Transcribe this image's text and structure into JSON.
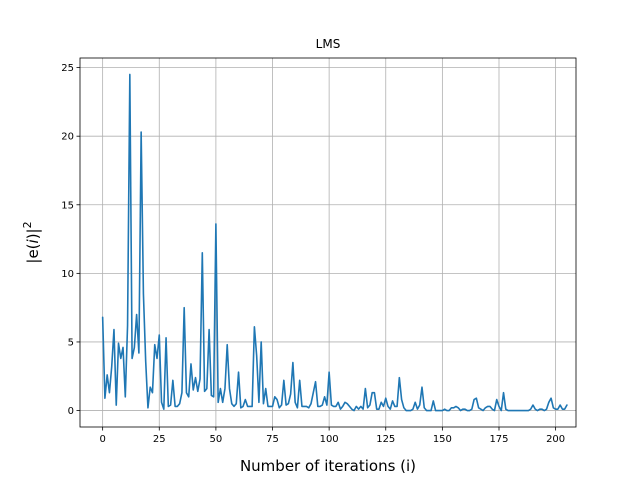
{
  "chart_data": {
    "type": "line",
    "title": "LMS",
    "xlabel": "Number of iterations (i)",
    "ylabel_parts": [
      "|e(",
      "i",
      ")|",
      "2"
    ],
    "xlim": [
      -10,
      209
    ],
    "ylim": [
      -1.2,
      25.7
    ],
    "xticks": [
      0,
      25,
      50,
      75,
      100,
      125,
      150,
      175,
      200
    ],
    "yticks": [
      0,
      5,
      10,
      15,
      20,
      25
    ],
    "grid": true,
    "line_color": "#1f77b4",
    "series": [
      {
        "values": [
          6.8,
          0.9,
          2.6,
          1.3,
          3.2,
          5.9,
          0.4,
          4.9,
          3.8,
          4.6,
          1.0,
          6.2,
          24.5,
          3.8,
          4.6,
          7.0,
          4.2,
          20.3,
          8.5,
          3.6,
          0.2,
          1.7,
          1.3,
          4.8,
          3.8,
          5.5,
          0.6,
          0.1,
          5.3,
          0.3,
          0.4,
          2.2,
          0.3,
          0.3,
          0.5,
          1.3,
          7.5,
          1.3,
          1.0,
          3.4,
          1.5,
          2.4,
          1.4,
          2.3,
          11.5,
          1.4,
          1.6,
          5.9,
          1.1,
          1.0,
          13.6,
          0.6,
          1.6,
          0.6,
          1.6,
          4.8,
          1.6,
          0.5,
          0.3,
          0.5,
          2.8,
          0.2,
          0.3,
          0.8,
          0.3,
          0.3,
          0.3,
          6.1,
          4.0,
          0.6,
          5.0,
          0.5,
          1.6,
          0.3,
          0.3,
          0.3,
          1.0,
          0.8,
          0.2,
          0.4,
          2.2,
          0.4,
          0.5,
          1.2,
          3.5,
          0.6,
          0.2,
          2.2,
          0.3,
          0.3,
          0.3,
          0.2,
          0.5,
          1.3,
          2.1,
          0.3,
          0.3,
          0.4,
          1.0,
          0.4,
          2.8,
          0.4,
          0.3,
          0.3,
          0.6,
          0.1,
          0.3,
          0.6,
          0.5,
          0.3,
          0.1,
          0.0,
          0.3,
          0.1,
          0.3,
          0.1,
          1.6,
          0.2,
          0.4,
          1.3,
          1.3,
          0.1,
          0.1,
          0.6,
          0.3,
          0.9,
          0.3,
          0.1,
          0.7,
          0.3,
          0.3,
          2.4,
          0.8,
          0.2,
          0.0,
          0.0,
          0.0,
          0.1,
          0.6,
          0.1,
          0.4,
          1.7,
          0.2,
          0.0,
          0.0,
          0.0,
          0.7,
          0.0,
          0.0,
          0.0,
          0.0,
          0.1,
          0.0,
          0.0,
          0.2,
          0.2,
          0.3,
          0.2,
          0.0,
          0.1,
          0.1,
          0.0,
          0.0,
          0.1,
          0.8,
          0.9,
          0.2,
          0.1,
          0.0,
          0.2,
          0.3,
          0.3,
          0.1,
          0.0,
          0.8,
          0.3,
          0.0,
          1.3,
          0.1,
          0.0,
          0.0,
          0.0,
          0.0,
          0.0,
          0.0,
          0.0,
          0.0,
          0.0,
          0.0,
          0.1,
          0.4,
          0.1,
          0.0,
          0.1,
          0.1,
          0.0,
          0.1,
          0.6,
          0.9,
          0.2,
          0.1,
          0.1,
          0.4,
          0.1,
          0.1,
          0.4
        ]
      }
    ]
  }
}
